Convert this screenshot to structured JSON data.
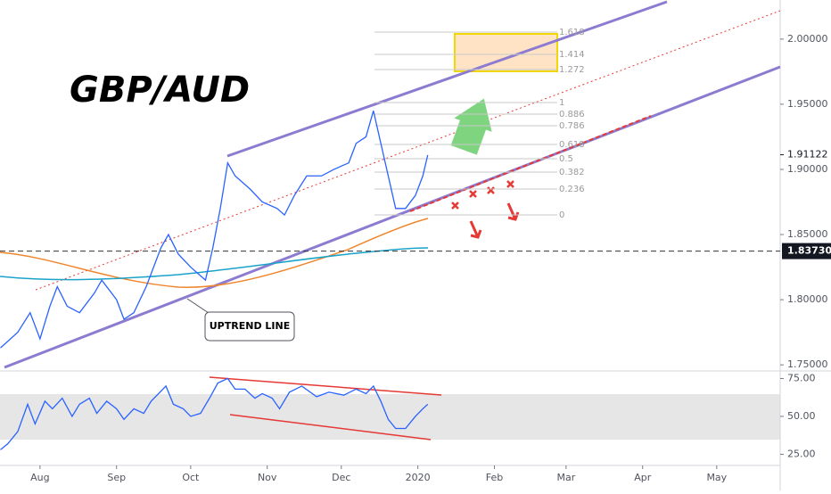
{
  "chart_data": [
    {
      "type": "line",
      "title": "GBP/AUD",
      "annotation": "UPTREND LINE",
      "fib_levels": [
        "1.618",
        "1.414",
        "1.272",
        "1",
        "0.886",
        "0.786",
        "0.618",
        "0.5",
        "0.382",
        "0.236",
        "0"
      ],
      "price_marks": [
        1.91122,
        {
          "value": 1.8373,
          "label": "1.83730"
        }
      ],
      "x": [
        -16,
        -9,
        -4,
        0,
        4,
        7,
        11,
        16,
        22,
        25,
        31,
        34,
        38,
        43,
        49,
        52,
        56,
        61,
        67,
        70,
        73,
        76,
        79,
        85,
        90,
        96,
        99,
        103,
        108,
        114,
        119,
        125,
        128,
        132,
        135,
        138,
        141,
        144,
        148,
        152,
        155,
        157
      ],
      "series": [
        {
          "color": "#2962ff",
          "values": [
            1.763,
            1.775,
            1.79,
            1.77,
            1.795,
            1.81,
            1.795,
            1.79,
            1.805,
            1.815,
            1.8,
            1.785,
            1.79,
            1.81,
            1.84,
            1.85,
            1.835,
            1.825,
            1.815,
            1.84,
            1.87,
            1.905,
            1.895,
            1.885,
            1.875,
            1.87,
            1.865,
            1.88,
            1.895,
            1.895,
            1.9,
            1.905,
            1.92,
            1.925,
            1.945,
            1.92,
            1.895,
            1.87,
            1.87,
            1.88,
            1.895,
            1.911
          ]
        }
      ],
      "xlim": [
        -16.2,
        299.7
      ],
      "ylim": [
        1.746,
        2.03
      ],
      "yticks": [
        {
          "value": 1.75,
          "label": "1.75000"
        },
        {
          "value": 1.8,
          "label": "1.80000"
        },
        {
          "value": 1.85,
          "label": "1.85000"
        },
        {
          "value": 1.9,
          "label": "1.90000"
        },
        {
          "value": 1.95,
          "label": "1.95000"
        },
        {
          "value": 2.0,
          "label": "2.00000"
        }
      ]
    },
    {
      "type": "line",
      "x": [
        -16,
        -13,
        -9,
        -5,
        -2,
        2,
        5,
        9,
        13,
        16,
        20,
        23,
        27,
        31,
        34,
        38,
        42,
        45,
        51,
        54,
        58,
        61,
        65,
        69,
        72,
        76,
        79,
        83,
        87,
        90,
        94,
        97,
        101,
        106,
        112,
        117,
        123,
        128,
        132,
        135,
        138,
        141,
        144,
        148,
        152,
        155,
        157
      ],
      "series": [
        {
          "color": "#2962ff",
          "values": [
            28,
            32,
            40,
            58,
            45,
            60,
            55,
            62,
            50,
            58,
            62,
            52,
            60,
            55,
            48,
            55,
            52,
            60,
            70,
            58,
            55,
            50,
            52,
            63,
            72,
            75,
            68,
            68,
            62,
            65,
            62,
            55,
            66,
            70,
            63,
            66,
            64,
            68,
            65,
            70,
            60,
            48,
            42,
            42,
            50,
            55,
            58
          ]
        }
      ],
      "xlim": [
        -16.2,
        299.7
      ],
      "ylim": [
        17.6,
        78.8
      ],
      "yticks": [
        {
          "value": 25,
          "label": "25.00"
        },
        {
          "value": 50,
          "label": "50.00"
        },
        {
          "value": 75,
          "label": "75.00"
        }
      ],
      "xticks": [
        {
          "value": 0,
          "label": "Aug"
        },
        {
          "value": 31,
          "label": "Sep"
        },
        {
          "value": 61,
          "label": "Oct"
        },
        {
          "value": 92,
          "label": "Nov"
        },
        {
          "value": 122,
          "label": "Dec"
        },
        {
          "value": 153,
          "label": "2020"
        },
        {
          "value": 184,
          "label": "Feb"
        },
        {
          "value": 213,
          "label": "Mar"
        },
        {
          "value": 244,
          "label": "Apr"
        },
        {
          "value": 274,
          "label": "May"
        }
      ]
    }
  ]
}
